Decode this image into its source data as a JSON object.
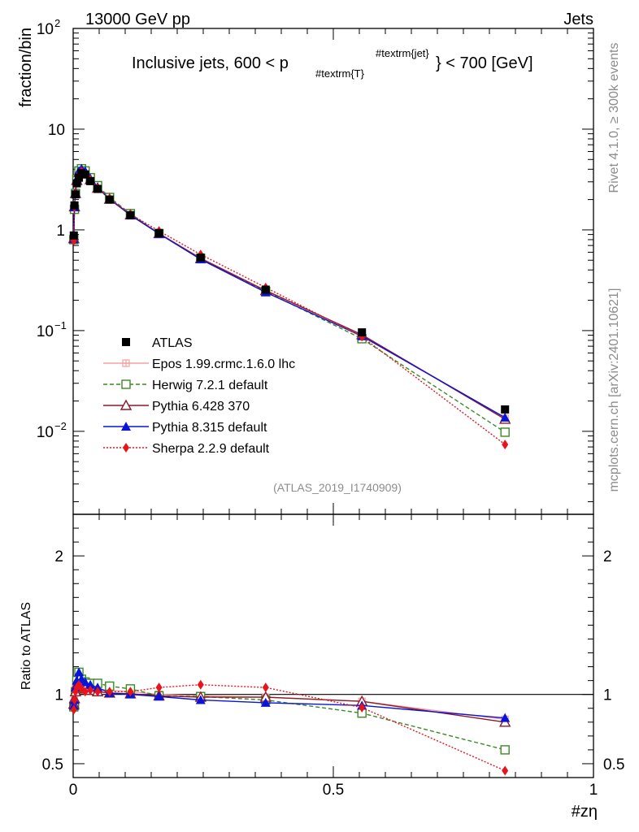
{
  "header": {
    "beam": "13000 GeV pp",
    "process": "Jets",
    "side_top": "Rivet 4.1.0, ≥ 300k events",
    "side_bottom": "mcplots.cern.ch [arXiv:2401.10621]",
    "analysis_id": "(ATLAS_2019_I1740909)"
  },
  "chart_data": {
    "type": "line",
    "title": {
      "prefix": "Inclusive jets, 600 < p",
      "sub": "#textrm{T}",
      "sup": "#textrm{jet}",
      "suffix": "} < 700 [GeV]"
    },
    "xlabel": "#zη",
    "ylabel": "fraction/bin",
    "ratio_ylabel": "Ratio to ATLAS",
    "xlim": [
      0,
      1
    ],
    "ylim": [
      0.0015,
      100
    ],
    "ratio_ylim": [
      0.4,
      2.3
    ],
    "yscale": "log",
    "x_ticks": [
      "0",
      "0.5",
      "1"
    ],
    "y_tick_labels": [
      {
        "base": "10",
        "exp": "2",
        "value": 100
      },
      {
        "base": "10",
        "exp": "",
        "value": 10
      },
      {
        "base": "1",
        "exp": "",
        "value": 1
      },
      {
        "base": "10",
        "exp": "−1",
        "value": 0.1
      },
      {
        "base": "10",
        "exp": "−2",
        "value": 0.01
      }
    ],
    "ratio_ticks": [
      "0.5",
      "1",
      "2"
    ],
    "legend_position": "lower-left",
    "x": [
      0.0012,
      0.0025,
      0.0045,
      0.007,
      0.011,
      0.016,
      0.023,
      0.033,
      0.047,
      0.07,
      0.11,
      0.165,
      0.245,
      0.37,
      0.555,
      0.83
    ],
    "series": [
      {
        "name": "ATLAS",
        "color": "#000000",
        "marker": "square",
        "dash": "",
        "is_data": true,
        "values": [
          0.88,
          1.75,
          2.25,
          2.9,
          3.3,
          3.65,
          3.55,
          3.05,
          2.55,
          2.0,
          1.4,
          0.93,
          0.53,
          0.255,
          0.096,
          0.0165
        ]
      },
      {
        "name": "Epos 1.99.crmc.1.6.0 lhc",
        "color": "#f4a0a0",
        "marker": "cross",
        "dash": "",
        "values": [
          0.82,
          1.75,
          2.35,
          3.15,
          3.75,
          3.95,
          3.75,
          3.25,
          2.65,
          2.05,
          1.42,
          0.925,
          0.525,
          0.25,
          0.091,
          0.0135
        ]
      },
      {
        "name": "Herwig 7.2.1 default",
        "color": "#3a8a22",
        "marker": "open-square",
        "dash": "5,3",
        "values": [
          0.8,
          1.6,
          2.3,
          3.2,
          3.85,
          4.05,
          3.85,
          3.3,
          2.75,
          2.1,
          1.45,
          0.92,
          0.52,
          0.245,
          0.083,
          0.0098
        ]
      },
      {
        "name": "Pythia 6.428 370",
        "color": "#8b1a2a",
        "marker": "open-triangle",
        "dash": "",
        "values": [
          0.82,
          1.7,
          2.3,
          3.1,
          3.7,
          3.9,
          3.7,
          3.15,
          2.6,
          2.02,
          1.41,
          0.92,
          0.52,
          0.25,
          0.091,
          0.0132
        ]
      },
      {
        "name": "Pythia 8.315 default",
        "color": "#0a14d8",
        "marker": "triangle",
        "dash": "",
        "values": [
          0.81,
          1.68,
          2.35,
          3.2,
          3.85,
          4.05,
          3.85,
          3.25,
          2.65,
          2.02,
          1.4,
          0.915,
          0.51,
          0.24,
          0.088,
          0.0137
        ]
      },
      {
        "name": "Sherpa 2.2.9 default",
        "color": "#e8141c",
        "marker": "diamond",
        "dash": "2,2",
        "values": [
          0.78,
          1.68,
          2.3,
          3.05,
          3.55,
          3.8,
          3.6,
          3.15,
          2.6,
          2.05,
          1.43,
          0.975,
          0.57,
          0.268,
          0.087,
          0.0074
        ]
      }
    ],
    "ratios": [
      {
        "name": "Epos 1.99.crmc.1.6.0 lhc",
        "values": [
          0.93,
          1.0,
          1.04,
          1.09,
          1.12,
          1.09,
          1.06,
          1.06,
          1.04,
          1.03,
          1.02,
          1.0,
          0.99,
          0.98,
          0.95,
          0.82
        ]
      },
      {
        "name": "Herwig 7.2.1 default",
        "values": [
          0.91,
          0.92,
          1.02,
          1.1,
          1.16,
          1.11,
          1.09,
          1.08,
          1.08,
          1.06,
          1.04,
          0.99,
          0.985,
          0.96,
          0.865,
          0.6
        ]
      },
      {
        "name": "Pythia 6.428 370",
        "values": [
          0.93,
          0.97,
          1.02,
          1.07,
          1.12,
          1.07,
          1.04,
          1.03,
          1.02,
          1.01,
          1.005,
          0.99,
          0.98,
          0.98,
          0.95,
          0.8
        ]
      },
      {
        "name": "Pythia 8.315 default",
        "values": [
          0.92,
          0.96,
          1.05,
          1.1,
          1.16,
          1.11,
          1.09,
          1.07,
          1.05,
          1.01,
          1.0,
          0.985,
          0.96,
          0.94,
          0.92,
          0.83
        ]
      },
      {
        "name": "Sherpa 2.2.9 default",
        "values": [
          0.89,
          0.96,
          1.02,
          1.05,
          1.07,
          1.04,
          1.02,
          1.03,
          1.02,
          1.02,
          1.02,
          1.05,
          1.07,
          1.05,
          0.905,
          0.45
        ]
      }
    ]
  }
}
